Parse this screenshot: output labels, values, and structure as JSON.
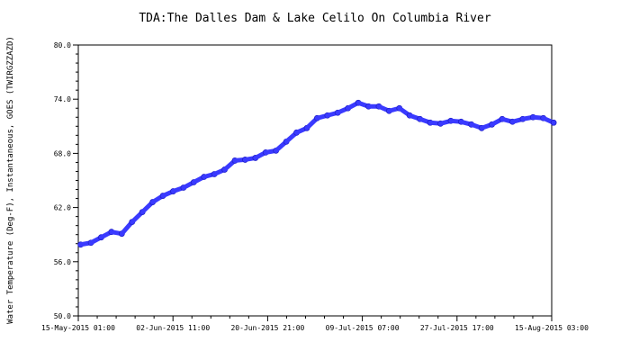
{
  "chart_data": {
    "type": "scatter",
    "title": "TDA:The Dalles Dam & Lake Celilo On Columbia River",
    "xlabel": "",
    "ylabel": "Water Temperature (Deg-F), Instantaneous, GOES (TWIRGZZAZD)",
    "ylim": [
      50.0,
      80.0
    ],
    "xlim": [
      "2015-05-15 01:00",
      "2015-08-15 03:00"
    ],
    "y_ticks": [
      "50.0",
      "56.0",
      "62.0",
      "68.0",
      "74.0",
      "80.0"
    ],
    "x_ticks": [
      "15-May-2015 01:00",
      "02-Jun-2015 11:00",
      "20-Jun-2015 21:00",
      "09-Jul-2015 07:00",
      "27-Jul-2015 17:00",
      "15-Aug-2015 03:00"
    ],
    "grid": false,
    "marker_color": "#3a3aff",
    "series": [
      {
        "x": [
          "2015-05-15",
          "2015-05-17",
          "2015-05-19",
          "2015-05-21",
          "2015-05-23",
          "2015-05-25",
          "2015-05-27",
          "2015-05-29",
          "2015-05-31",
          "2015-06-02",
          "2015-06-04",
          "2015-06-06",
          "2015-06-08",
          "2015-06-10",
          "2015-06-12",
          "2015-06-14",
          "2015-06-16",
          "2015-06-18",
          "2015-06-20",
          "2015-06-22",
          "2015-06-24",
          "2015-06-26",
          "2015-06-28",
          "2015-06-30",
          "2015-07-02",
          "2015-07-04",
          "2015-07-06",
          "2015-07-08",
          "2015-07-10",
          "2015-07-12",
          "2015-07-14",
          "2015-07-16",
          "2015-07-18",
          "2015-07-20",
          "2015-07-22",
          "2015-07-24",
          "2015-07-26",
          "2015-07-28",
          "2015-07-30",
          "2015-08-01",
          "2015-08-03",
          "2015-08-05",
          "2015-08-07",
          "2015-08-09",
          "2015-08-11",
          "2015-08-13",
          "2015-08-15"
        ],
        "values": [
          57.9,
          58.1,
          58.7,
          59.3,
          59.1,
          60.4,
          61.5,
          62.6,
          63.3,
          63.8,
          64.2,
          64.8,
          65.4,
          65.7,
          66.2,
          67.2,
          67.3,
          67.5,
          68.1,
          68.3,
          69.3,
          70.3,
          70.8,
          71.9,
          72.2,
          72.5,
          73.0,
          73.6,
          73.2,
          73.2,
          72.7,
          73.0,
          72.2,
          71.8,
          71.4,
          71.3,
          71.6,
          71.5,
          71.2,
          70.8,
          71.2,
          71.8,
          71.5,
          71.8,
          72.0,
          71.9,
          71.4
        ]
      }
    ]
  }
}
